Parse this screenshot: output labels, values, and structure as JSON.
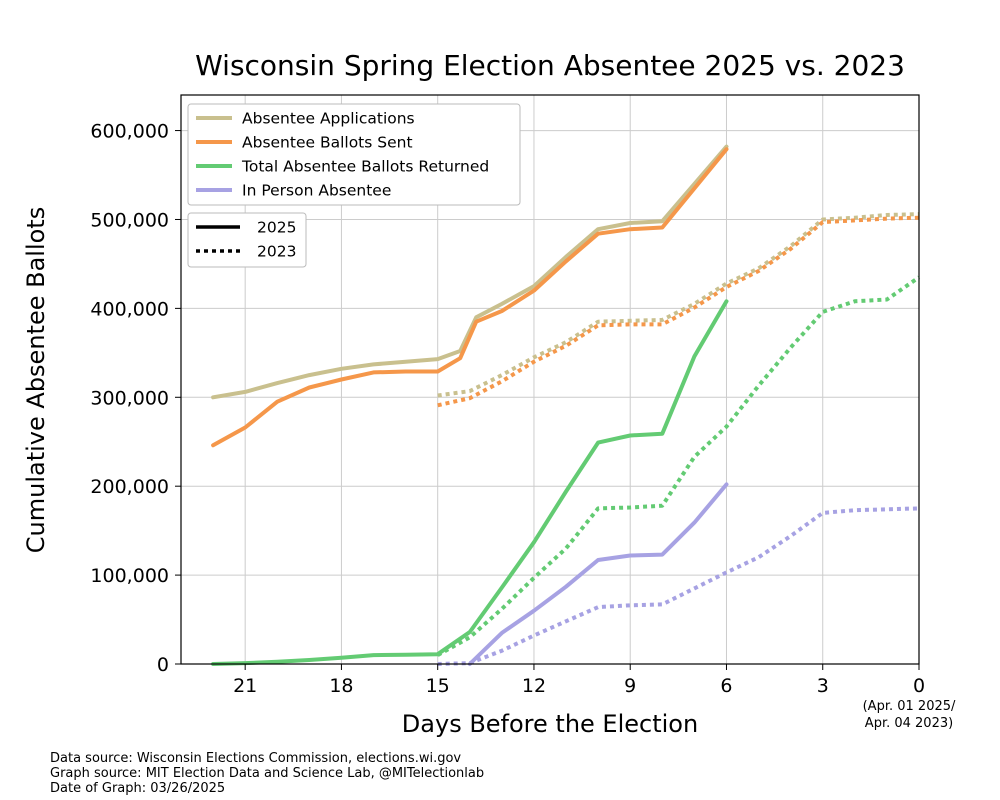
{
  "chart_data": {
    "type": "line",
    "title": "Wisconsin Spring Election Absentee 2025 vs. 2023",
    "xlabel": "Days Before the Election",
    "ylabel": "Cumulative Absentee Ballots",
    "xlim": [
      23,
      0
    ],
    "ylim": [
      0,
      640000
    ],
    "x_ticks": [
      21,
      18,
      15,
      12,
      9,
      6,
      3,
      0
    ],
    "y_ticks": [
      0,
      100000,
      200000,
      300000,
      400000,
      500000,
      600000
    ],
    "y_tick_labels": [
      "0",
      "100,000",
      "200,000",
      "300,000",
      "400,000",
      "500,000",
      "600,000"
    ],
    "x_end_note": [
      "(Apr. 01 2025/",
      "Apr. 04 2023)"
    ],
    "grid": true,
    "legend_position": "top-left",
    "series": [
      {
        "name": "Absentee Applications",
        "year": "2025",
        "style": "solid",
        "color": "#c9c08e",
        "x": [
          22,
          21,
          20,
          19,
          18,
          17,
          16,
          15,
          14.3,
          13.8,
          13,
          12,
          11,
          10,
          9,
          8,
          7,
          6
        ],
        "y": [
          300000,
          306000,
          316000,
          325000,
          332000,
          337000,
          340000,
          343000,
          352000,
          390000,
          405000,
          425000,
          458000,
          489000,
          496000,
          498000,
          540000,
          582000
        ]
      },
      {
        "name": "Absentee Applications",
        "year": "2023",
        "style": "dotted",
        "color": "#c9c08e",
        "x": [
          15,
          14,
          13,
          12,
          11,
          10,
          9,
          8,
          7,
          6,
          5,
          4,
          3,
          2,
          1,
          0
        ],
        "y": [
          302000,
          307000,
          325000,
          345000,
          362000,
          385000,
          386000,
          387000,
          405000,
          428000,
          445000,
          470000,
          500000,
          502000,
          505000,
          506000
        ]
      },
      {
        "name": "Absentee Ballots Sent",
        "year": "2025",
        "style": "solid",
        "color": "#f5974a",
        "x": [
          22,
          21,
          20,
          19,
          18,
          17,
          16,
          15,
          14.3,
          13.8,
          13,
          12,
          11,
          10,
          9,
          8,
          7,
          6
        ],
        "y": [
          246000,
          266000,
          295000,
          311000,
          320000,
          328000,
          329000,
          329000,
          344000,
          385000,
          397000,
          420000,
          453000,
          484000,
          489000,
          491000,
          535000,
          579000
        ]
      },
      {
        "name": "Absentee Ballots Sent",
        "year": "2023",
        "style": "dotted",
        "color": "#f5974a",
        "x": [
          15,
          14,
          13,
          12,
          11,
          10,
          9,
          8,
          7,
          6,
          5,
          4,
          3,
          2,
          1,
          0
        ],
        "y": [
          291000,
          299000,
          318000,
          340000,
          358000,
          381000,
          382000,
          382000,
          401000,
          424000,
          442000,
          467000,
          497000,
          499000,
          501000,
          502000
        ]
      },
      {
        "name": "Total Absentee Ballots Returned",
        "year": "2025",
        "style": "solid",
        "color": "#63cb73",
        "x": [
          22,
          21,
          20,
          19,
          18,
          17,
          16,
          15,
          14,
          13,
          12,
          11,
          10,
          9,
          8,
          7,
          6
        ],
        "y": [
          0,
          1000,
          2500,
          4500,
          7000,
          10000,
          10500,
          11000,
          36000,
          86000,
          137000,
          194000,
          249000,
          257000,
          259000,
          346000,
          408000
        ]
      },
      {
        "name": "Total Absentee Ballots Returned",
        "year": "2023",
        "style": "dotted",
        "color": "#63cb73",
        "x": [
          15,
          14,
          13,
          12,
          11,
          10,
          9,
          8,
          7,
          6,
          5,
          4,
          3,
          2,
          1,
          0
        ],
        "y": [
          10000,
          30000,
          62000,
          97000,
          130000,
          175000,
          176000,
          178000,
          233000,
          267000,
          313000,
          356000,
          396000,
          408000,
          410000,
          435000
        ]
      },
      {
        "name": "In Person Absentee",
        "year": "2025",
        "style": "solid",
        "color": "#a7a2e3",
        "x": [
          14,
          13,
          12,
          11,
          10,
          9,
          8,
          7,
          6
        ],
        "y": [
          0,
          35000,
          60000,
          87000,
          117000,
          122000,
          123000,
          159000,
          202000
        ]
      },
      {
        "name": "In Person Absentee",
        "year": "2023",
        "style": "dotted",
        "color": "#a7a2e3",
        "x": [
          15,
          14,
          13,
          12,
          11,
          10,
          9,
          8,
          7,
          6,
          5,
          4,
          3,
          2,
          1,
          0
        ],
        "y": [
          0,
          1000,
          15000,
          32000,
          48000,
          64000,
          66000,
          67000,
          85000,
          103000,
          120000,
          144000,
          170000,
          173000,
          174000,
          175000
        ]
      }
    ],
    "legend_series": [
      {
        "label": "Absentee Applications",
        "color": "#c9c08e"
      },
      {
        "label": "Absentee Ballots Sent",
        "color": "#f5974a"
      },
      {
        "label": "Total Absentee Ballots Returned",
        "color": "#63cb73"
      },
      {
        "label": "In Person Absentee",
        "color": "#a7a2e3"
      }
    ],
    "legend_years": [
      {
        "label": "2025",
        "style": "solid"
      },
      {
        "label": "2023",
        "style": "dotted"
      }
    ]
  },
  "footer": {
    "line1": "Data source: Wisconsin Elections Commission, elections.wi.gov",
    "line2": "Graph source: MIT Election Data and Science Lab, @MITelectionlab",
    "line3": "Date of Graph: 03/26/2025"
  }
}
